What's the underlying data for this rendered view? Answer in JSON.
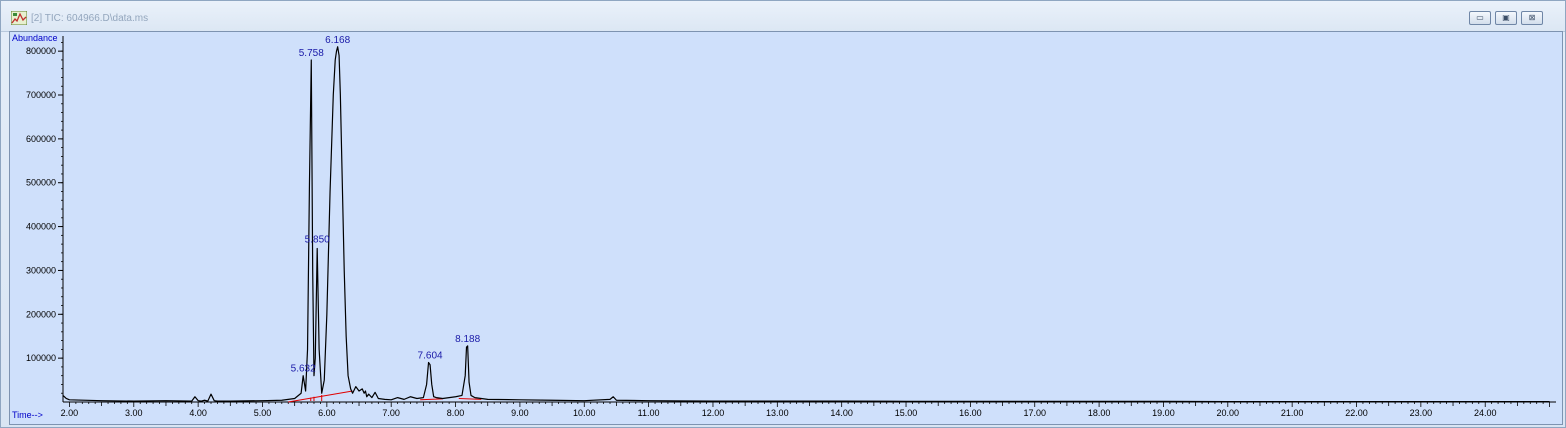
{
  "window": {
    "title": "[2] TIC: 604966.D\\data.ms",
    "icon": "chromatogram-icon",
    "buttons": {
      "minimize": "▭",
      "maximize": "▣",
      "close": "⊠"
    }
  },
  "chart_data": {
    "type": "line",
    "title": "",
    "ylabel": "Abundance",
    "xlabel": "Time-->",
    "xlim": [
      1.9,
      25.1
    ],
    "ylim": [
      0,
      830000
    ],
    "x_ticks": [
      "2.00",
      "3.00",
      "4.00",
      "5.00",
      "6.00",
      "7.00",
      "8.00",
      "9.00",
      "10.00",
      "11.00",
      "12.00",
      "13.00",
      "14.00",
      "15.00",
      "16.00",
      "17.00",
      "18.00",
      "19.00",
      "20.00",
      "21.00",
      "22.00",
      "23.00",
      "24.00"
    ],
    "y_ticks": [
      "100000",
      "200000",
      "300000",
      "400000",
      "500000",
      "600000",
      "700000",
      "800000"
    ],
    "grid": false,
    "series": [
      {
        "color": "#000000",
        "x": [
          1.9,
          1.95,
          2.0,
          2.5,
          3.0,
          3.5,
          3.9,
          3.95,
          4.0,
          4.05,
          4.1,
          4.15,
          4.2,
          4.25,
          4.3,
          4.5,
          5.0,
          5.3,
          5.5,
          5.6,
          5.632,
          5.67,
          5.7,
          5.73,
          5.758,
          5.78,
          5.8,
          5.82,
          5.85,
          5.88,
          5.92,
          5.96,
          6.0,
          6.05,
          6.1,
          6.13,
          6.15,
          6.168,
          6.19,
          6.21,
          6.24,
          6.27,
          6.3,
          6.33,
          6.37,
          6.4,
          6.45,
          6.5,
          6.55,
          6.58,
          6.6,
          6.62,
          6.65,
          6.7,
          6.75,
          6.8,
          6.9,
          7.0,
          7.1,
          7.2,
          7.3,
          7.4,
          7.5,
          7.55,
          7.58,
          7.604,
          7.63,
          7.66,
          7.7,
          7.8,
          7.9,
          8.0,
          8.1,
          8.15,
          8.17,
          8.188,
          8.21,
          8.24,
          8.3,
          8.4,
          8.5,
          9.0,
          9.5,
          10.0,
          10.4,
          10.45,
          10.5,
          11.0,
          12.0,
          13.0,
          14.0,
          15.0,
          16.0,
          17.0,
          18.0,
          19.0,
          20.0,
          21.0,
          22.0,
          23.0,
          24.0,
          25.0
        ],
        "y": [
          15000,
          8000,
          5000,
          3000,
          2000,
          3000,
          2000,
          12000,
          3000,
          2000,
          4000,
          2000,
          18000,
          3000,
          2000,
          2000,
          3000,
          4000,
          8000,
          20000,
          60000,
          25000,
          120000,
          500000,
          780000,
          300000,
          60000,
          100000,
          350000,
          120000,
          20000,
          50000,
          200000,
          480000,
          700000,
          780000,
          800000,
          810000,
          790000,
          700000,
          500000,
          300000,
          150000,
          60000,
          30000,
          20000,
          35000,
          25000,
          30000,
          20000,
          25000,
          12000,
          18000,
          10000,
          22000,
          8000,
          6000,
          5000,
          10000,
          6000,
          12000,
          8000,
          10000,
          40000,
          90000,
          85000,
          40000,
          12000,
          10000,
          8000,
          10000,
          12000,
          15000,
          60000,
          125000,
          128000,
          45000,
          15000,
          10000,
          8000,
          6000,
          5000,
          4000,
          3000,
          6000,
          12000,
          4000,
          3000,
          2000,
          2000,
          2000,
          1500,
          1500,
          1500,
          1500,
          1500,
          1000,
          1000,
          1000,
          1000,
          1000,
          1000
        ]
      }
    ],
    "peak_labels": [
      {
        "x": 5.758,
        "y": 780000,
        "text": "5.758"
      },
      {
        "x": 6.168,
        "y": 810000,
        "text": "6.168"
      },
      {
        "x": 5.85,
        "y": 355000,
        "text": "5.850"
      },
      {
        "x": 5.632,
        "y": 60000,
        "text": "5.632"
      },
      {
        "x": 7.604,
        "y": 90000,
        "text": "7.604"
      },
      {
        "x": 8.188,
        "y": 128000,
        "text": "8.188"
      }
    ],
    "integration_color": "#e00000",
    "baselines": [
      {
        "x1": 5.4,
        "y1": 0,
        "x2": 6.4,
        "y2": 25000
      },
      {
        "x1": 7.45,
        "y1": 5000,
        "x2": 7.8,
        "y2": 7000
      },
      {
        "x1": 8.05,
        "y1": 8000,
        "x2": 8.4,
        "y2": 6000
      }
    ],
    "drop_lines": [
      {
        "x": 5.75,
        "y": 10000
      },
      {
        "x": 5.8,
        "y": 12000
      },
      {
        "x": 5.92,
        "y": 16000
      }
    ]
  }
}
